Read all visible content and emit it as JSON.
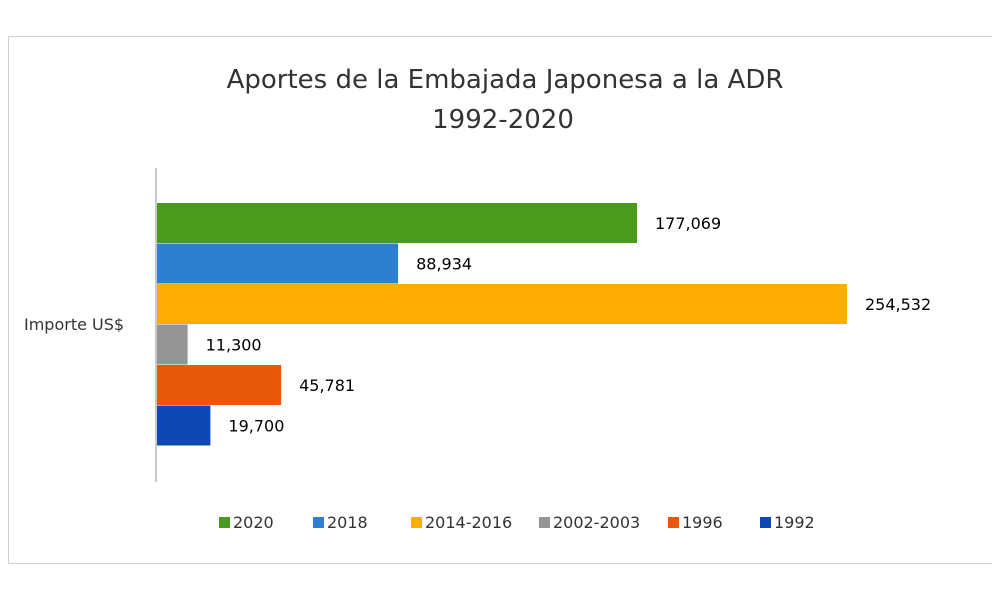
{
  "chart_data": {
    "type": "bar",
    "orientation": "horizontal",
    "title": [
      "Aportes de la Embajada Japonesa a la ADR",
      "1992-2020"
    ],
    "categories": [
      "Importe US$"
    ],
    "series": [
      {
        "name": "2020",
        "values": [
          177069
        ],
        "label": "177,069",
        "color": "#4a9a1e"
      },
      {
        "name": "2018",
        "values": [
          88934
        ],
        "label": "88,934",
        "color": "#2e7fd0"
      },
      {
        "name": "2014-2016",
        "values": [
          254532
        ],
        "label": "254,532",
        "color": "#ffad00"
      },
      {
        "name": "2002-2003",
        "values": [
          11300
        ],
        "label": "11,300",
        "color": "#959595"
      },
      {
        "name": "1996",
        "values": [
          45781
        ],
        "label": "45,781",
        "color": "#e8580a"
      },
      {
        "name": "1992",
        "values": [
          19700
        ],
        "label": "19,700",
        "color": "#0f47b4"
      }
    ],
    "xlim": [
      0,
      260000
    ],
    "grid": false,
    "legend_position": "bottom"
  }
}
